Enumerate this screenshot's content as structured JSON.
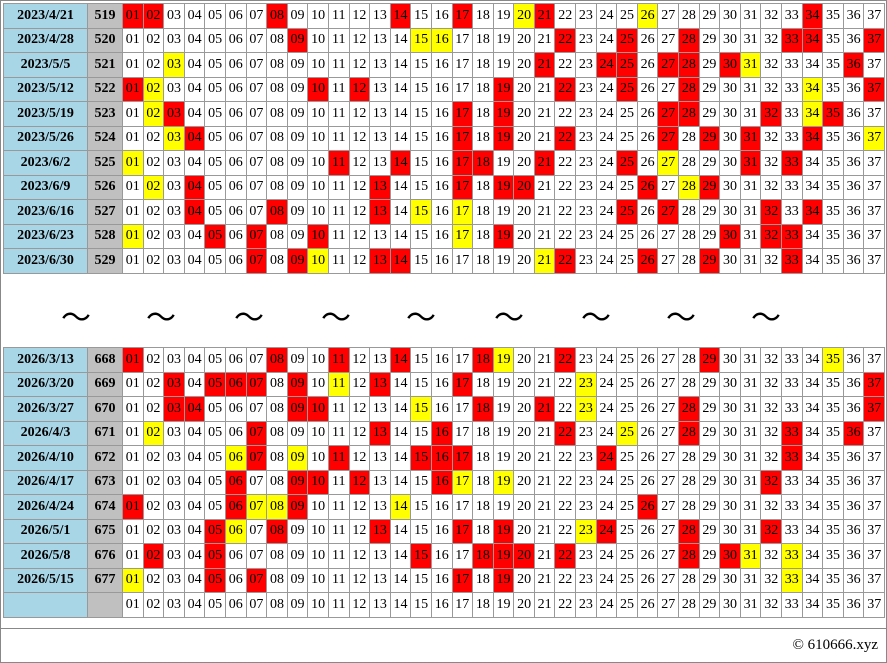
{
  "numbers": [
    "01",
    "02",
    "03",
    "04",
    "05",
    "06",
    "07",
    "08",
    "09",
    "10",
    "11",
    "12",
    "13",
    "14",
    "15",
    "16",
    "17",
    "18",
    "19",
    "20",
    "21",
    "22",
    "23",
    "24",
    "25",
    "26",
    "27",
    "28",
    "29",
    "30",
    "31",
    "32",
    "33",
    "34",
    "35",
    "36",
    "37"
  ],
  "top": {
    "rows": [
      {
        "date": "2023/4/21",
        "period": "519",
        "red": [
          1,
          2,
          8,
          14,
          17,
          21,
          34
        ],
        "yellow": [
          20,
          26
        ]
      },
      {
        "date": "2023/4/28",
        "period": "520",
        "red": [
          9,
          22,
          25,
          28,
          33,
          34,
          37
        ],
        "yellow": [
          15,
          16
        ]
      },
      {
        "date": "2023/5/5",
        "period": "521",
        "red": [
          21,
          24,
          25,
          27,
          28,
          30,
          36
        ],
        "yellow": [
          3,
          31
        ]
      },
      {
        "date": "2023/5/12",
        "period": "522",
        "red": [
          1,
          10,
          12,
          19,
          22,
          25,
          28,
          37
        ],
        "yellow": [
          2,
          34
        ]
      },
      {
        "date": "2023/5/19",
        "period": "523",
        "red": [
          3,
          17,
          19,
          27,
          28,
          32,
          35
        ],
        "yellow": [
          2,
          34
        ]
      },
      {
        "date": "2023/5/26",
        "period": "524",
        "red": [
          4,
          17,
          19,
          22,
          27,
          29,
          31,
          34
        ],
        "yellow": [
          3,
          37
        ]
      },
      {
        "date": "2023/6/2",
        "period": "525",
        "red": [
          11,
          14,
          17,
          18,
          21,
          25,
          31,
          33
        ],
        "yellow": [
          1,
          27
        ]
      },
      {
        "date": "2023/6/9",
        "period": "526",
        "red": [
          4,
          13,
          17,
          19,
          20,
          26,
          29
        ],
        "yellow": [
          2,
          28
        ]
      },
      {
        "date": "2023/6/16",
        "period": "527",
        "red": [
          4,
          8,
          13,
          25,
          27,
          32,
          34
        ],
        "yellow": [
          15,
          17
        ]
      },
      {
        "date": "2023/6/23",
        "period": "528",
        "red": [
          5,
          7,
          10,
          19,
          30,
          32,
          33
        ],
        "yellow": [
          1,
          17
        ]
      },
      {
        "date": "2023/6/30",
        "period": "529",
        "red": [
          7,
          9,
          13,
          14,
          22,
          26,
          29,
          33
        ],
        "yellow": [
          10,
          21
        ]
      }
    ]
  },
  "separator": "～",
  "bottom": {
    "rows": [
      {
        "date": "2026/3/13",
        "period": "668",
        "red": [
          1,
          8,
          11,
          14,
          18,
          22,
          29
        ],
        "yellow": [
          19,
          35
        ]
      },
      {
        "date": "2026/3/20",
        "period": "669",
        "red": [
          3,
          5,
          6,
          7,
          9,
          13,
          17,
          37
        ],
        "yellow": [
          11,
          23
        ]
      },
      {
        "date": "2026/3/27",
        "period": "670",
        "red": [
          3,
          4,
          9,
          10,
          18,
          21,
          28,
          37
        ],
        "yellow": [
          15,
          23
        ]
      },
      {
        "date": "2026/4/3",
        "period": "671",
        "red": [
          7,
          13,
          16,
          22,
          28,
          33,
          36
        ],
        "yellow": [
          2,
          25
        ]
      },
      {
        "date": "2026/4/10",
        "period": "672",
        "red": [
          7,
          11,
          15,
          16,
          17,
          24,
          33
        ],
        "yellow": [
          6,
          9
        ]
      },
      {
        "date": "2026/4/17",
        "period": "673",
        "red": [
          6,
          9,
          10,
          12,
          16,
          32
        ],
        "yellow": [
          17,
          19
        ]
      },
      {
        "date": "2026/4/24",
        "period": "674",
        "red": [
          1,
          6,
          9,
          26
        ],
        "yellow": [
          7,
          8,
          14
        ]
      },
      {
        "date": "2026/5/1",
        "period": "675",
        "red": [
          5,
          8,
          13,
          17,
          19,
          24,
          28,
          32
        ],
        "yellow": [
          6,
          23
        ]
      },
      {
        "date": "2026/5/8",
        "period": "676",
        "red": [
          2,
          5,
          15,
          18,
          19,
          20,
          22,
          28,
          30
        ],
        "yellow": [
          31,
          33
        ]
      },
      {
        "date": "2026/5/15",
        "period": "677",
        "red": [
          5,
          7,
          17,
          19
        ],
        "yellow": [
          1,
          33
        ]
      },
      {
        "date": null,
        "period": null,
        "red": [],
        "yellow": []
      }
    ]
  },
  "footer": "© 610666.xyz"
}
